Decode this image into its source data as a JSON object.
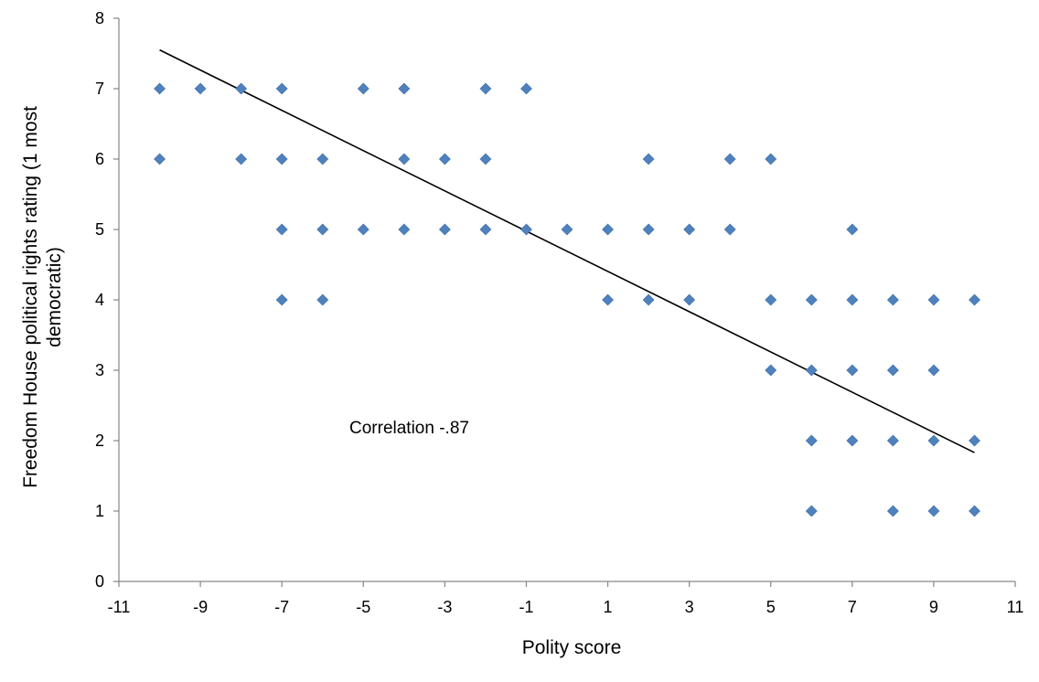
{
  "chart_data": {
    "type": "scatter",
    "xlabel": "Polity score",
    "ylabel": [
      "Freedom House political rights rating (1 most",
      "democratic)"
    ],
    "xlim": [
      -11,
      11
    ],
    "ylim": [
      0,
      8
    ],
    "x_ticks": [
      -11,
      -9,
      -7,
      -5,
      -3,
      -1,
      1,
      3,
      5,
      7,
      9,
      11
    ],
    "y_ticks": [
      0,
      1,
      2,
      3,
      4,
      5,
      6,
      7,
      8
    ],
    "grid": false,
    "legend": "none",
    "annotation": "Correlation -.87",
    "marker_color": "#4F81BD",
    "trendline": {
      "x": [
        -10,
        10
      ],
      "y": [
        7.55,
        1.83
      ],
      "color": "#000000"
    },
    "points": [
      {
        "x": -10,
        "y": 7
      },
      {
        "x": -9,
        "y": 7
      },
      {
        "x": -8,
        "y": 7
      },
      {
        "x": -7,
        "y": 7
      },
      {
        "x": -5,
        "y": 7
      },
      {
        "x": -4,
        "y": 7
      },
      {
        "x": -2,
        "y": 7
      },
      {
        "x": -1,
        "y": 7
      },
      {
        "x": -10,
        "y": 6
      },
      {
        "x": -8,
        "y": 6
      },
      {
        "x": -7,
        "y": 6
      },
      {
        "x": -6,
        "y": 6
      },
      {
        "x": -4,
        "y": 6
      },
      {
        "x": -3,
        "y": 6
      },
      {
        "x": -2,
        "y": 6
      },
      {
        "x": 2,
        "y": 6
      },
      {
        "x": 4,
        "y": 6
      },
      {
        "x": 5,
        "y": 6
      },
      {
        "x": -7,
        "y": 5
      },
      {
        "x": -6,
        "y": 5
      },
      {
        "x": -5,
        "y": 5
      },
      {
        "x": -4,
        "y": 5
      },
      {
        "x": -3,
        "y": 5
      },
      {
        "x": -2,
        "y": 5
      },
      {
        "x": -1,
        "y": 5
      },
      {
        "x": 0,
        "y": 5
      },
      {
        "x": 1,
        "y": 5
      },
      {
        "x": 2,
        "y": 5
      },
      {
        "x": 3,
        "y": 5
      },
      {
        "x": 4,
        "y": 5
      },
      {
        "x": 7,
        "y": 5
      },
      {
        "x": -7,
        "y": 4
      },
      {
        "x": -6,
        "y": 4
      },
      {
        "x": 1,
        "y": 4
      },
      {
        "x": 2,
        "y": 4
      },
      {
        "x": 3,
        "y": 4
      },
      {
        "x": 5,
        "y": 4
      },
      {
        "x": 6,
        "y": 4
      },
      {
        "x": 7,
        "y": 4
      },
      {
        "x": 8,
        "y": 4
      },
      {
        "x": 9,
        "y": 4
      },
      {
        "x": 10,
        "y": 4
      },
      {
        "x": 5,
        "y": 3
      },
      {
        "x": 6,
        "y": 3
      },
      {
        "x": 7,
        "y": 3
      },
      {
        "x": 8,
        "y": 3
      },
      {
        "x": 9,
        "y": 3
      },
      {
        "x": 6,
        "y": 2
      },
      {
        "x": 7,
        "y": 2
      },
      {
        "x": 8,
        "y": 2
      },
      {
        "x": 9,
        "y": 2
      },
      {
        "x": 10,
        "y": 2
      },
      {
        "x": 6,
        "y": 1
      },
      {
        "x": 8,
        "y": 1
      },
      {
        "x": 9,
        "y": 1
      },
      {
        "x": 10,
        "y": 1
      }
    ]
  }
}
